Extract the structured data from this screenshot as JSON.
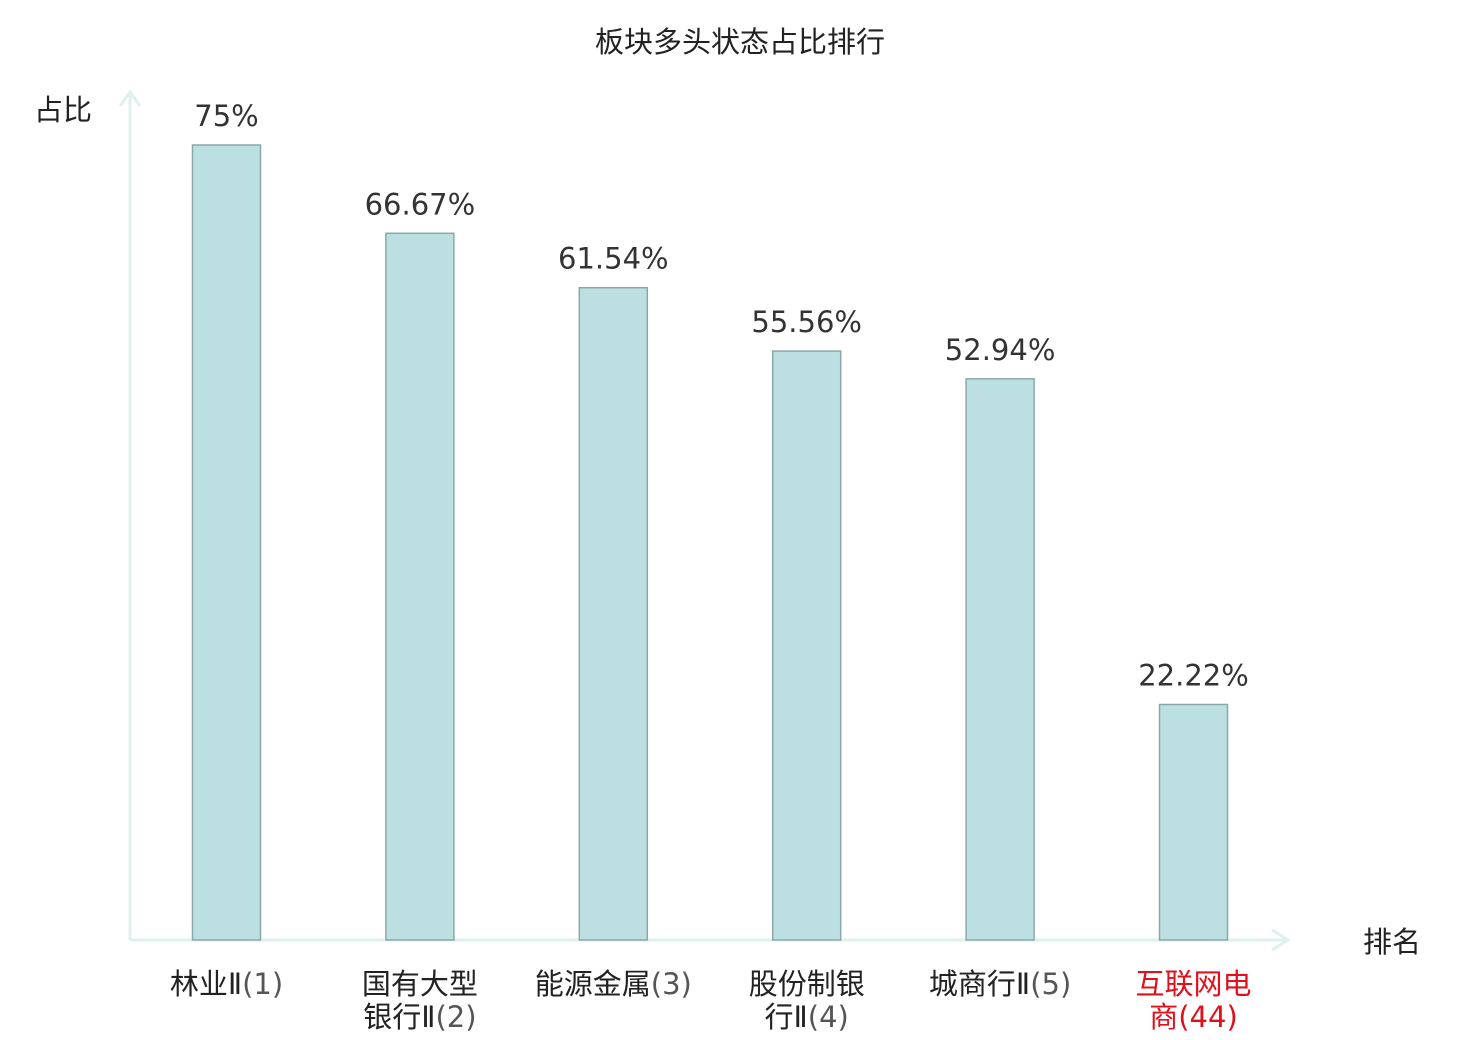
{
  "chart_data": {
    "type": "bar",
    "title": "板块多头状态占比排行",
    "ylabel": "占比",
    "xlabel": "排名",
    "ylim": [
      0,
      80
    ],
    "grid": false,
    "legend": "none",
    "categories": [
      {
        "lines": [
          "林业Ⅱ(1)"
        ],
        "highlight": false
      },
      {
        "lines": [
          "国有大型",
          "银行Ⅱ(2)"
        ],
        "highlight": false
      },
      {
        "lines": [
          "能源金属(3)"
        ],
        "highlight": false
      },
      {
        "lines": [
          "股份制银",
          "行Ⅱ(4)"
        ],
        "highlight": false
      },
      {
        "lines": [
          "城商行Ⅱ(5)"
        ],
        "highlight": false
      },
      {
        "lines": [
          "互联网电",
          "商(44)"
        ],
        "highlight": true
      }
    ],
    "values": [
      75,
      66.67,
      61.54,
      55.56,
      52.94,
      22.22
    ],
    "value_labels": [
      "75%",
      "66.67%",
      "61.54%",
      "55.56%",
      "52.94%",
      "22.22%"
    ]
  },
  "colors": {
    "bar_fill": "#bce0e2",
    "bar_stroke": "#8aa8ab",
    "axis": "#dff0ee",
    "highlight": "#e0101c"
  }
}
